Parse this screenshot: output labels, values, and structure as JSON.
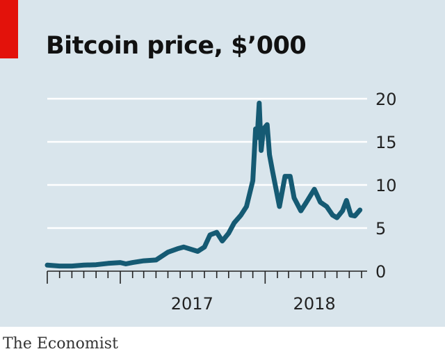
{
  "title": "Bitcoin price, $’000",
  "source": "The Economist",
  "colors": {
    "panel": "#d9e5ec",
    "accent": "#e3120b",
    "line": "#155a73",
    "grid": "#ffffff"
  },
  "chart_data": {
    "type": "line",
    "title": "Bitcoin price, $’000",
    "xlabel": "",
    "ylabel": "",
    "ylim": [
      0,
      20
    ],
    "yticks": [
      0,
      5,
      10,
      15,
      20
    ],
    "xtick_labels": [
      "2017",
      "2018"
    ],
    "grid": true,
    "series": [
      {
        "x": [
          "2016-07-01",
          "2016-08-01",
          "2016-09-01",
          "2016-10-01",
          "2016-11-01",
          "2016-12-01",
          "2017-01-01",
          "2017-01-15",
          "2017-02-01",
          "2017-03-01",
          "2017-04-01",
          "2017-05-01",
          "2017-05-25",
          "2017-06-10",
          "2017-07-15",
          "2017-08-01",
          "2017-08-15",
          "2017-09-01",
          "2017-09-15",
          "2017-10-01",
          "2017-10-15",
          "2017-11-01",
          "2017-11-15",
          "2017-12-01",
          "2017-12-08",
          "2017-12-12",
          "2017-12-17",
          "2017-12-22",
          "2017-12-28",
          "2018-01-06",
          "2018-01-12",
          "2018-01-20",
          "2018-02-06",
          "2018-02-20",
          "2018-03-05",
          "2018-03-15",
          "2018-04-01",
          "2018-04-15",
          "2018-05-05",
          "2018-05-20",
          "2018-06-05",
          "2018-06-20",
          "2018-07-01",
          "2018-07-15",
          "2018-07-25",
          "2018-08-05",
          "2018-08-15",
          "2018-08-28"
        ],
        "values": [
          0.7,
          0.6,
          0.6,
          0.7,
          0.75,
          0.9,
          1.0,
          0.85,
          1.0,
          1.2,
          1.3,
          2.2,
          2.6,
          2.8,
          2.3,
          2.8,
          4.2,
          4.5,
          3.5,
          4.4,
          5.6,
          6.5,
          7.5,
          10.5,
          16.5,
          15.5,
          19.5,
          14.0,
          16.5,
          17.0,
          13.5,
          11.5,
          7.5,
          11.0,
          11.0,
          8.5,
          7.0,
          8.0,
          9.5,
          8.0,
          7.5,
          6.5,
          6.2,
          7.0,
          8.2,
          6.5,
          6.4,
          7.1
        ]
      }
    ]
  }
}
